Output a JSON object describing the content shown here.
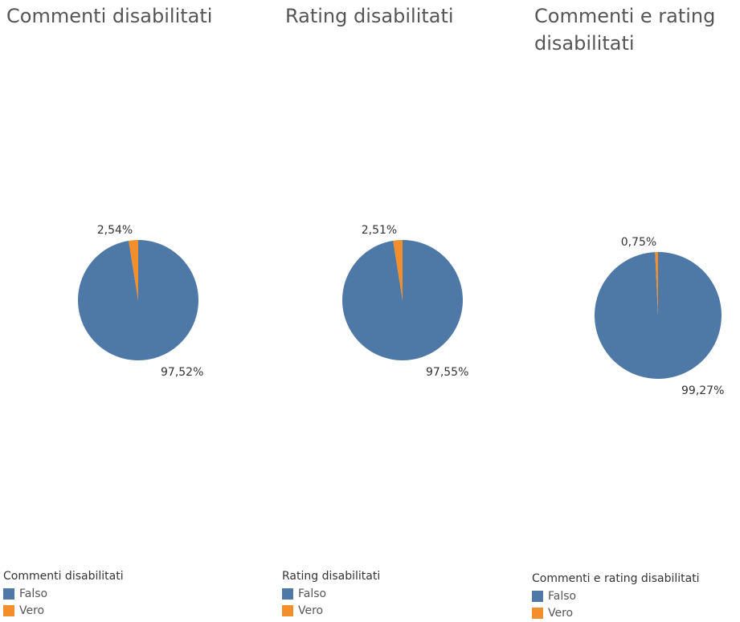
{
  "colors": {
    "falso": "#4e79a7",
    "vero": "#f28e2b"
  },
  "chart_data": [
    {
      "type": "pie",
      "title": "Commenti disabilitati",
      "slices": [
        {
          "label": "Falso",
          "value": 97.52,
          "text": "97,52%"
        },
        {
          "label": "Vero",
          "value": 2.54,
          "text": "2,54%"
        }
      ],
      "legend": {
        "title": "Commenti disabilitati",
        "items": [
          "Falso",
          "Vero"
        ],
        "placement": "bottom-left"
      }
    },
    {
      "type": "pie",
      "title": "Rating disabilitati",
      "slices": [
        {
          "label": "Falso",
          "value": 97.55,
          "text": "97,55%"
        },
        {
          "label": "Vero",
          "value": 2.51,
          "text": "2,51%"
        }
      ],
      "legend": {
        "title": "Rating disabilitati",
        "items": [
          "Falso",
          "Vero"
        ],
        "placement": "bottom-left"
      }
    },
    {
      "type": "pie",
      "title": "Commenti e rating disabilitati",
      "slices": [
        {
          "label": "Falso",
          "value": 99.27,
          "text": "99,27%"
        },
        {
          "label": "Vero",
          "value": 0.75,
          "text": "0,75%"
        }
      ],
      "legend": {
        "title": "Commenti e rating disabilitati",
        "items": [
          "Falso",
          "Vero"
        ],
        "placement": "bottom-left"
      }
    }
  ]
}
